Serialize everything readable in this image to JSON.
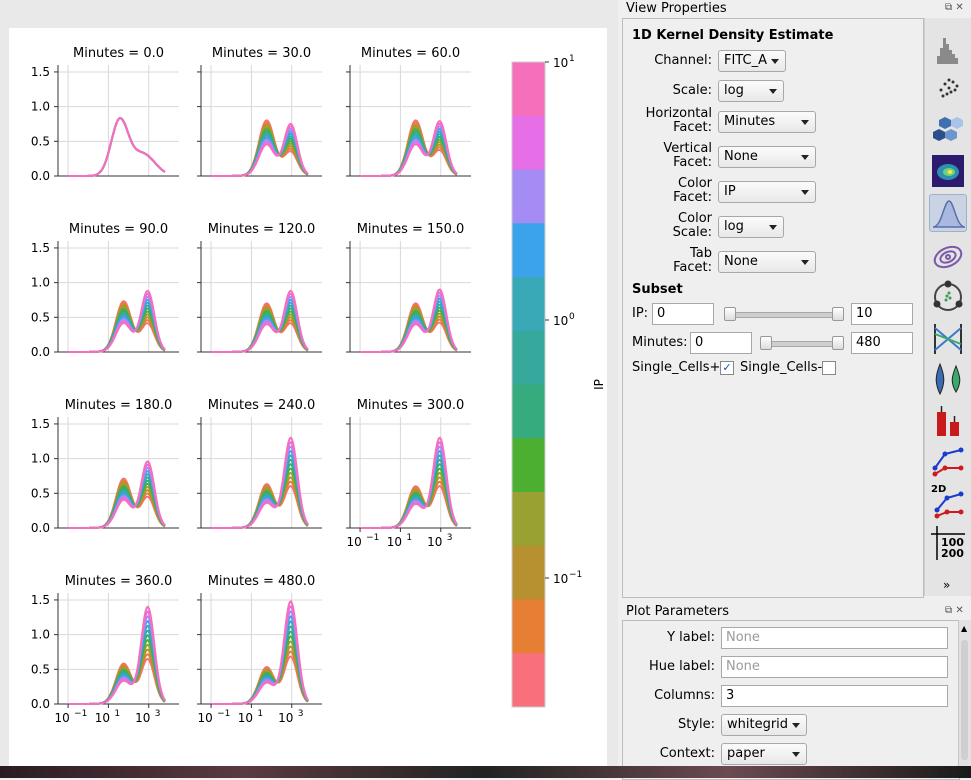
{
  "chart_data": {
    "type": "line",
    "title": "",
    "x_scale": "log",
    "x_ticks": [
      "10^-1",
      "10^1",
      "10^3"
    ],
    "ylim": [
      0,
      1.5
    ],
    "y_ticks": [
      "0.0",
      "0.5",
      "1.0",
      "1.5"
    ],
    "facets": [
      {
        "title": "Minutes = 0.0",
        "minutes": 0,
        "peak_low": 0.8,
        "peak_high": 0.33
      },
      {
        "title": "Minutes = 30.0",
        "minutes": 30,
        "peak_low": 0.77,
        "peak_high": 0.72
      },
      {
        "title": "Minutes = 60.0",
        "minutes": 60,
        "peak_low": 0.77,
        "peak_high": 0.76
      },
      {
        "title": "Minutes = 90.0",
        "minutes": 90,
        "peak_low": 0.7,
        "peak_high": 0.85
      },
      {
        "title": "Minutes = 120.0",
        "minutes": 120,
        "peak_low": 0.67,
        "peak_high": 0.85
      },
      {
        "title": "Minutes = 150.0",
        "minutes": 150,
        "peak_low": 0.67,
        "peak_high": 0.87
      },
      {
        "title": "Minutes = 180.0",
        "minutes": 180,
        "peak_low": 0.68,
        "peak_high": 0.93
      },
      {
        "title": "Minutes = 240.0",
        "minutes": 240,
        "peak_low": 0.6,
        "peak_high": 1.27
      },
      {
        "title": "Minutes = 300.0",
        "minutes": 300,
        "peak_low": 0.57,
        "peak_high": 1.27
      },
      {
        "title": "Minutes = 360.0",
        "minutes": 360,
        "peak_low": 0.55,
        "peak_high": 1.37
      },
      {
        "title": "Minutes = 480.0",
        "minutes": 480,
        "peak_low": 0.5,
        "peak_high": 1.45
      }
    ],
    "series_colors": [
      "#f7707c",
      "#e67e33",
      "#b79130",
      "#98a131",
      "#4daf32",
      "#35ab7e",
      "#36a99c",
      "#39a9b7",
      "#3ba3ec",
      "#a48cf4",
      "#e66ee6",
      "#f66fbb"
    ],
    "colorbar": {
      "label": "IP",
      "scale": "log",
      "ticks": [
        "10^1",
        "10^0",
        "10^-1"
      ]
    }
  },
  "view_properties": {
    "title": "View Properties",
    "heading": "1D Kernel Density Estimate",
    "fields": [
      {
        "label": "Channel:",
        "value": "FITC_A"
      },
      {
        "label": "Scale:",
        "value": "log"
      },
      {
        "label": "Horizontal\nFacet:",
        "value": "Minutes"
      },
      {
        "label": "Vertical\nFacet:",
        "value": "None"
      },
      {
        "label": "Color\nFacet:",
        "value": "IP"
      },
      {
        "label": "Color\nScale:",
        "value": "log"
      },
      {
        "label": "Tab\nFacet:",
        "value": "None"
      }
    ],
    "subset": {
      "heading": "Subset",
      "ip_label": "IP:",
      "ip_min": "0",
      "ip_max": "10",
      "min_label": "Minutes:",
      "min_min": "0",
      "min_max": "480",
      "single_plus": "Single_Cells+",
      "single_minus": "Single_Cells-"
    }
  },
  "plot_parameters": {
    "title": "Plot Parameters",
    "y_label": "Y label:",
    "y_placeholder": "None",
    "hue_label": "Hue label:",
    "hue_placeholder": "None",
    "columns_label": "Columns:",
    "columns_value": "3",
    "style_label": "Style:",
    "style_value": "whitegrid",
    "context_label": "Context:",
    "context_value": "paper"
  },
  "toolbar": {
    "tools": [
      "histogram-icon",
      "scatterplot-icon",
      "hexbin-icon",
      "density-2d-icon",
      "kde-1d-icon",
      "contour-icon",
      "radviz-icon",
      "parallel-coords-icon",
      "violin-icon",
      "bar-chart-icon",
      "stats-1d-icon",
      "stats-2d-icon",
      "table-view-icon"
    ],
    "stats_2d_text": "2D",
    "table_text_top": "100",
    "table_text_bottom": "200",
    "more": "»"
  }
}
